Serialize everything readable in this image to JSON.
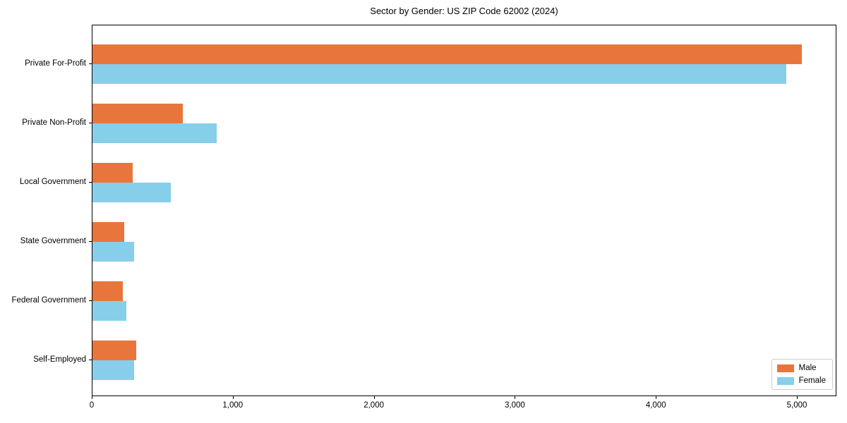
{
  "chart_data": {
    "type": "bar",
    "orientation": "horizontal",
    "title": "Sector by Gender: US ZIP Code 62002 (2024)",
    "categories": [
      "Private For-Profit",
      "Private Non-Profit",
      "Local Government",
      "State Government",
      "Federal Government",
      "Self-Employed"
    ],
    "series": [
      {
        "name": "Male",
        "color": "#e8763c",
        "values": [
          5040,
          640,
          285,
          225,
          215,
          310
        ]
      },
      {
        "name": "Female",
        "color": "#87ceeb",
        "values": [
          4930,
          880,
          555,
          295,
          240,
          295
        ]
      }
    ],
    "xlabel": "",
    "ylabel": "",
    "xlim": [
      0,
      5280
    ],
    "x_ticks": [
      0,
      1000,
      2000,
      3000,
      4000,
      5000
    ],
    "x_tick_labels": [
      "0",
      "1,000",
      "2,000",
      "3,000",
      "4,000",
      "5,000"
    ],
    "grid": false,
    "legend": {
      "position": "lower right"
    },
    "colors": {
      "spine": "#000000",
      "background": "#ffffff"
    }
  }
}
